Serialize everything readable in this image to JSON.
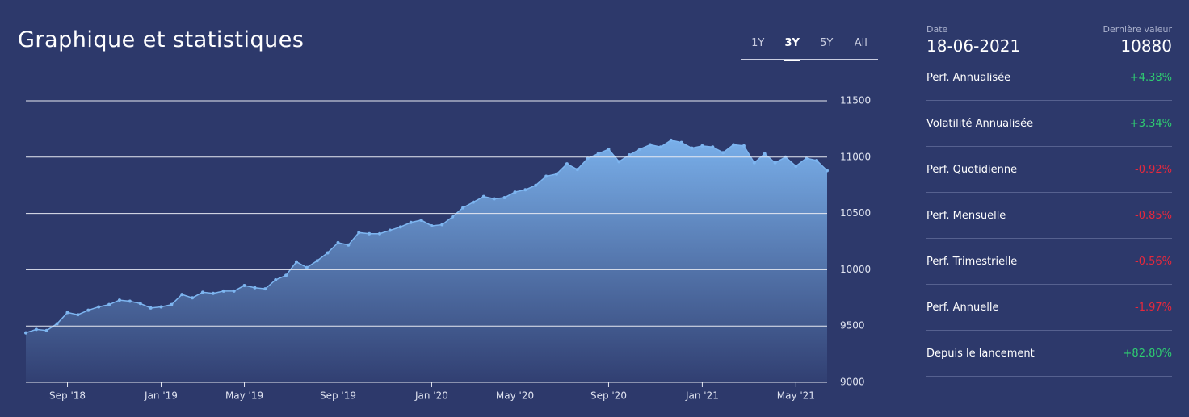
{
  "header": {
    "title": "Graphique et statistiques",
    "tabs": [
      "1Y",
      "3Y",
      "5Y",
      "All"
    ],
    "active_tab": 1
  },
  "chart_data": {
    "type": "area",
    "categories": [
      null,
      null,
      null,
      null,
      "Sep '18",
      null,
      null,
      null,
      null,
      null,
      null,
      null,
      null,
      "Jan '19",
      null,
      null,
      null,
      null,
      null,
      null,
      null,
      "May '19",
      null,
      null,
      null,
      null,
      null,
      null,
      null,
      null,
      "Sep '19",
      null,
      null,
      null,
      null,
      null,
      null,
      null,
      null,
      "Jan '20",
      null,
      null,
      null,
      null,
      null,
      null,
      null,
      "May '20",
      null,
      null,
      null,
      null,
      null,
      null,
      null,
      null,
      "Sep '20",
      null,
      null,
      null,
      null,
      null,
      null,
      null,
      null,
      "Jan '21",
      null,
      null,
      null,
      null,
      null,
      null,
      null,
      null,
      "May '21",
      null,
      null,
      null
    ],
    "values": [
      9440,
      9470,
      9460,
      9520,
      9620,
      9600,
      9640,
      9670,
      9690,
      9730,
      9720,
      9700,
      9660,
      9670,
      9690,
      9780,
      9750,
      9800,
      9790,
      9810,
      9810,
      9860,
      9840,
      9830,
      9910,
      9950,
      10070,
      10020,
      10080,
      10150,
      10240,
      10220,
      10330,
      10320,
      10320,
      10350,
      10380,
      10420,
      10440,
      10390,
      10400,
      10470,
      10550,
      10600,
      10650,
      10630,
      10640,
      10690,
      10710,
      10750,
      10830,
      10850,
      10940,
      10890,
      10990,
      11030,
      11070,
      10960,
      11020,
      11070,
      11110,
      11090,
      11150,
      11130,
      11080,
      11100,
      11090,
      11040,
      11110,
      11100,
      10950,
      11030,
      10950,
      11000,
      10920,
      10990,
      10970,
      10880
    ],
    "color": "#7db5f0",
    "ylim": [
      9000,
      11500
    ],
    "yticks": [
      9000,
      9500,
      10000,
      10500,
      11000,
      11500
    ],
    "grid": true
  },
  "stats": {
    "date_label": "Date",
    "date": "18-06-2021",
    "last_label": "Dernière valeur",
    "last_value": "10880",
    "rows": [
      {
        "name": "Perf. Annualisée",
        "value": "+4.38%",
        "color": "#2ecc71"
      },
      {
        "name": "Volatilité Annualisée",
        "value": "+3.34%",
        "color": "#2ecc71"
      },
      {
        "name": "Perf. Quotidienne",
        "value": "-0.92%",
        "color": "#e8283c"
      },
      {
        "name": "Perf. Mensuelle",
        "value": "-0.85%",
        "color": "#e8283c"
      },
      {
        "name": "Perf. Trimestrielle",
        "value": "-0.56%",
        "color": "#e8283c"
      },
      {
        "name": "Perf. Annuelle",
        "value": "-1.97%",
        "color": "#e8283c"
      },
      {
        "name": "Depuis le lancement",
        "value": "+82.80%",
        "color": "#2ecc71"
      }
    ]
  }
}
